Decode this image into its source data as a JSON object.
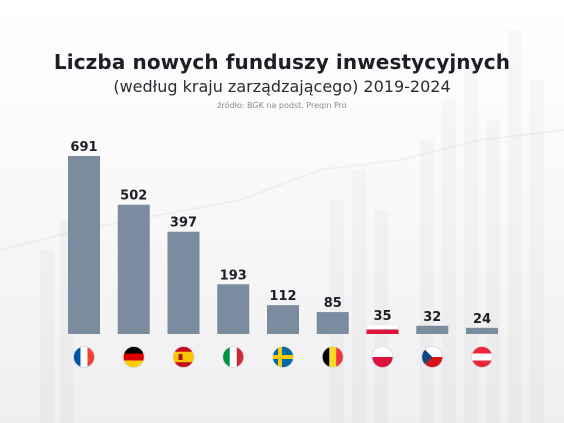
{
  "title": "Liczba nowych funduszy inwestycyjnych",
  "subtitle": "(według kraju zarządzającego) 2019-2024",
  "source": "źródło: BGK na podst. Preqin Pro",
  "chart_data": {
    "type": "bar",
    "title": "Liczba nowych funduszy inwestycyjnych",
    "subtitle": "(według kraju zarządzającego) 2019-2024",
    "categories": [
      "Francja",
      "Niemcy",
      "Hiszpania",
      "Włochy",
      "Szwecja",
      "Belgia",
      "Polska",
      "Czechy",
      "Austria"
    ],
    "category_icons": [
      "flag-france-icon",
      "flag-germany-icon",
      "flag-spain-icon",
      "flag-italy-icon",
      "flag-sweden-icon",
      "flag-belgium-icon",
      "flag-poland-icon",
      "flag-czechia-icon",
      "flag-austria-icon"
    ],
    "values": [
      691,
      502,
      397,
      193,
      112,
      85,
      35,
      32,
      24
    ],
    "value_labels": [
      "691",
      "502",
      "397",
      "193",
      "112",
      "85",
      "35",
      "32",
      "24"
    ],
    "highlight_index": 6,
    "ylim": [
      0,
      691
    ],
    "grid": false,
    "legend": false,
    "colors": {
      "bar": "#7a8c9d",
      "highlight": "#dc143c",
      "text": "#1e1f26"
    }
  }
}
